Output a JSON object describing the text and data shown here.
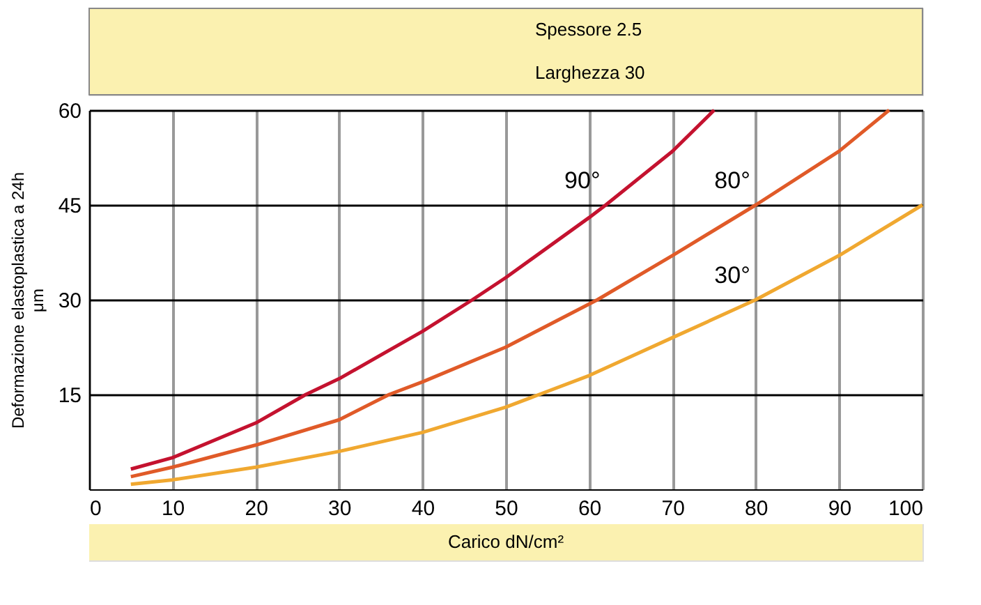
{
  "chart_data": {
    "type": "line",
    "xlabel": "Carico dN/cm²",
    "ylabel": "Deformazione elastoplastica a 24h\nμm",
    "series": [
      {
        "name": "90°",
        "color": "#c4122f",
        "x": [
          5,
          10,
          20,
          26,
          30,
          40,
          46,
          50,
          60,
          62,
          70,
          75
        ],
        "values": [
          3.2,
          5,
          10.5,
          15,
          17.5,
          25,
          30,
          33.5,
          43,
          45,
          53.5,
          60
        ]
      },
      {
        "name": "80°",
        "color": "#e05a28",
        "x": [
          5,
          10,
          20,
          30,
          36,
          40,
          50,
          61,
          70,
          80,
          90,
          96
        ],
        "values": [
          2,
          3.5,
          7,
          11,
          15,
          17,
          22.5,
          30,
          37,
          45,
          53.5,
          60
        ]
      },
      {
        "name": "30°",
        "color": "#f0a830",
        "x": [
          5,
          10,
          20,
          30,
          40,
          50,
          54,
          60,
          70,
          80,
          90,
          100
        ],
        "values": [
          0.8,
          1.5,
          3.5,
          6,
          9,
          13,
          15,
          18,
          24,
          30,
          37,
          45
        ]
      }
    ],
    "xlim": [
      0,
      100
    ],
    "xticks": [
      0,
      10,
      20,
      30,
      40,
      50,
      60,
      70,
      80,
      90,
      100
    ],
    "ylim": [
      0,
      60
    ],
    "yticks": [
      15,
      30,
      45,
      60
    ],
    "grid": true,
    "line_style": "solid",
    "marker": "none",
    "annotations": [
      "Spessore 2.5",
      "Larghezza 30"
    ]
  }
}
